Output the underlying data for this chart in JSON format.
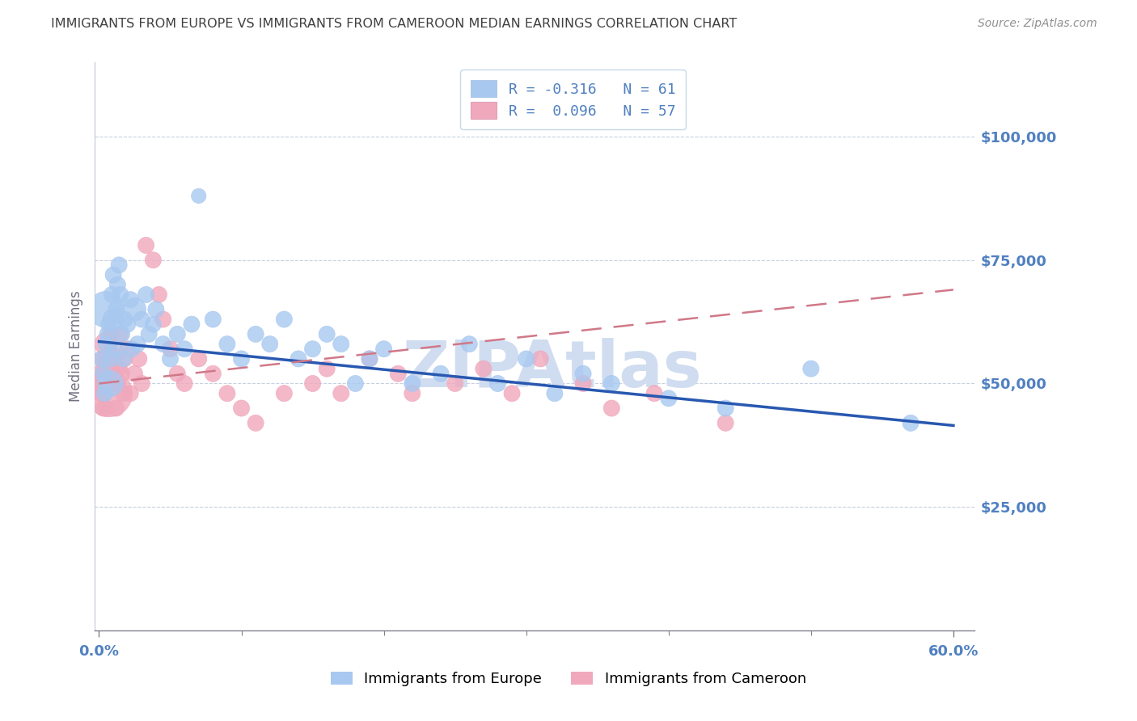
{
  "title": "IMMIGRANTS FROM EUROPE VS IMMIGRANTS FROM CAMEROON MEDIAN EARNINGS CORRELATION CHART",
  "source": "Source: ZipAtlas.com",
  "ylabel": "Median Earnings",
  "ytick_labels": [
    "$25,000",
    "$50,000",
    "$75,000",
    "$100,000"
  ],
  "ytick_vals": [
    25000,
    50000,
    75000,
    100000
  ],
  "ylim": [
    0,
    115000
  ],
  "xlim": [
    -0.003,
    0.615
  ],
  "xtick_major": [
    0.0,
    0.6
  ],
  "xtick_major_labels": [
    "0.0%",
    "60.0%"
  ],
  "xtick_minor": [
    0.1,
    0.2,
    0.3,
    0.4,
    0.5
  ],
  "legend_europe_text": "R = -0.316   N = 61",
  "legend_cameroon_text": "R =  0.096   N = 57",
  "europe_color": "#a8c8f0",
  "cameroon_color": "#f0a8bc",
  "europe_line_color": "#2858b0",
  "cameroon_line_color": "#d07888",
  "axis_color": "#5080c0",
  "grid_color": "#c8d0e0",
  "watermark": "ZIPAtlas",
  "watermark_color": "#d0ddf0",
  "blue_line_x0": 0.0,
  "blue_line_y0": 58500,
  "blue_line_x1": 0.6,
  "blue_line_y1": 41500,
  "pink_line_x0": 0.0,
  "pink_line_y0": 50000,
  "pink_line_x1": 0.6,
  "pink_line_y1": 69000,
  "blue_x": [
    0.002,
    0.003,
    0.004,
    0.005,
    0.005,
    0.006,
    0.007,
    0.008,
    0.008,
    0.009,
    0.01,
    0.01,
    0.011,
    0.012,
    0.013,
    0.014,
    0.015,
    0.016,
    0.017,
    0.018,
    0.02,
    0.022,
    0.023,
    0.025,
    0.027,
    0.03,
    0.033,
    0.035,
    0.038,
    0.04,
    0.045,
    0.05,
    0.055,
    0.06,
    0.065,
    0.07,
    0.08,
    0.09,
    0.1,
    0.11,
    0.12,
    0.13,
    0.14,
    0.15,
    0.16,
    0.17,
    0.18,
    0.19,
    0.2,
    0.22,
    0.24,
    0.26,
    0.28,
    0.3,
    0.32,
    0.34,
    0.36,
    0.4,
    0.44,
    0.5,
    0.57
  ],
  "blue_y": [
    55000,
    52000,
    48000,
    58000,
    65000,
    60000,
    62000,
    55000,
    50000,
    68000,
    72000,
    63000,
    57000,
    65000,
    70000,
    74000,
    68000,
    60000,
    55000,
    63000,
    62000,
    67000,
    57000,
    65000,
    58000,
    63000,
    68000,
    60000,
    62000,
    65000,
    58000,
    55000,
    60000,
    57000,
    62000,
    88000,
    63000,
    58000,
    55000,
    60000,
    58000,
    63000,
    55000,
    57000,
    60000,
    58000,
    50000,
    55000,
    57000,
    50000,
    52000,
    58000,
    50000,
    55000,
    48000,
    52000,
    50000,
    47000,
    45000,
    53000,
    42000
  ],
  "blue_s": [
    60,
    60,
    60,
    60,
    300,
    60,
    60,
    60,
    150,
    60,
    60,
    100,
    60,
    60,
    60,
    60,
    60,
    60,
    60,
    60,
    60,
    60,
    60,
    120,
    60,
    60,
    60,
    60,
    60,
    60,
    60,
    60,
    60,
    60,
    60,
    50,
    60,
    60,
    60,
    60,
    60,
    60,
    60,
    60,
    60,
    60,
    60,
    60,
    60,
    60,
    60,
    60,
    60,
    60,
    60,
    60,
    60,
    60,
    60,
    60,
    60
  ],
  "pink_x": [
    0.001,
    0.002,
    0.002,
    0.003,
    0.003,
    0.004,
    0.004,
    0.005,
    0.005,
    0.006,
    0.006,
    0.007,
    0.007,
    0.008,
    0.008,
    0.009,
    0.01,
    0.011,
    0.012,
    0.013,
    0.014,
    0.015,
    0.016,
    0.017,
    0.018,
    0.02,
    0.022,
    0.025,
    0.028,
    0.03,
    0.033,
    0.038,
    0.042,
    0.045,
    0.05,
    0.055,
    0.06,
    0.07,
    0.08,
    0.09,
    0.1,
    0.11,
    0.13,
    0.15,
    0.16,
    0.17,
    0.19,
    0.21,
    0.22,
    0.25,
    0.27,
    0.29,
    0.31,
    0.34,
    0.36,
    0.39,
    0.44
  ],
  "pink_y": [
    48000,
    55000,
    50000,
    52000,
    45000,
    53000,
    48000,
    58000,
    45000,
    55000,
    50000,
    52000,
    48000,
    55000,
    60000,
    50000,
    52000,
    55000,
    45000,
    50000,
    53000,
    60000,
    52000,
    48000,
    55000,
    57000,
    48000,
    52000,
    55000,
    50000,
    78000,
    75000,
    68000,
    63000,
    57000,
    52000,
    50000,
    55000,
    52000,
    48000,
    45000,
    42000,
    48000,
    50000,
    53000,
    48000,
    55000,
    52000,
    48000,
    50000,
    53000,
    48000,
    55000,
    50000,
    45000,
    48000,
    42000
  ],
  "pink_s": [
    60,
    60,
    60,
    100,
    60,
    60,
    60,
    120,
    60,
    60,
    60,
    60,
    500,
    150,
    60,
    60,
    60,
    60,
    60,
    60,
    60,
    60,
    60,
    60,
    60,
    60,
    60,
    60,
    60,
    60,
    60,
    60,
    60,
    60,
    60,
    60,
    60,
    60,
    60,
    60,
    60,
    60,
    60,
    60,
    60,
    60,
    60,
    60,
    60,
    60,
    60,
    60,
    60,
    60,
    60,
    60,
    60
  ]
}
